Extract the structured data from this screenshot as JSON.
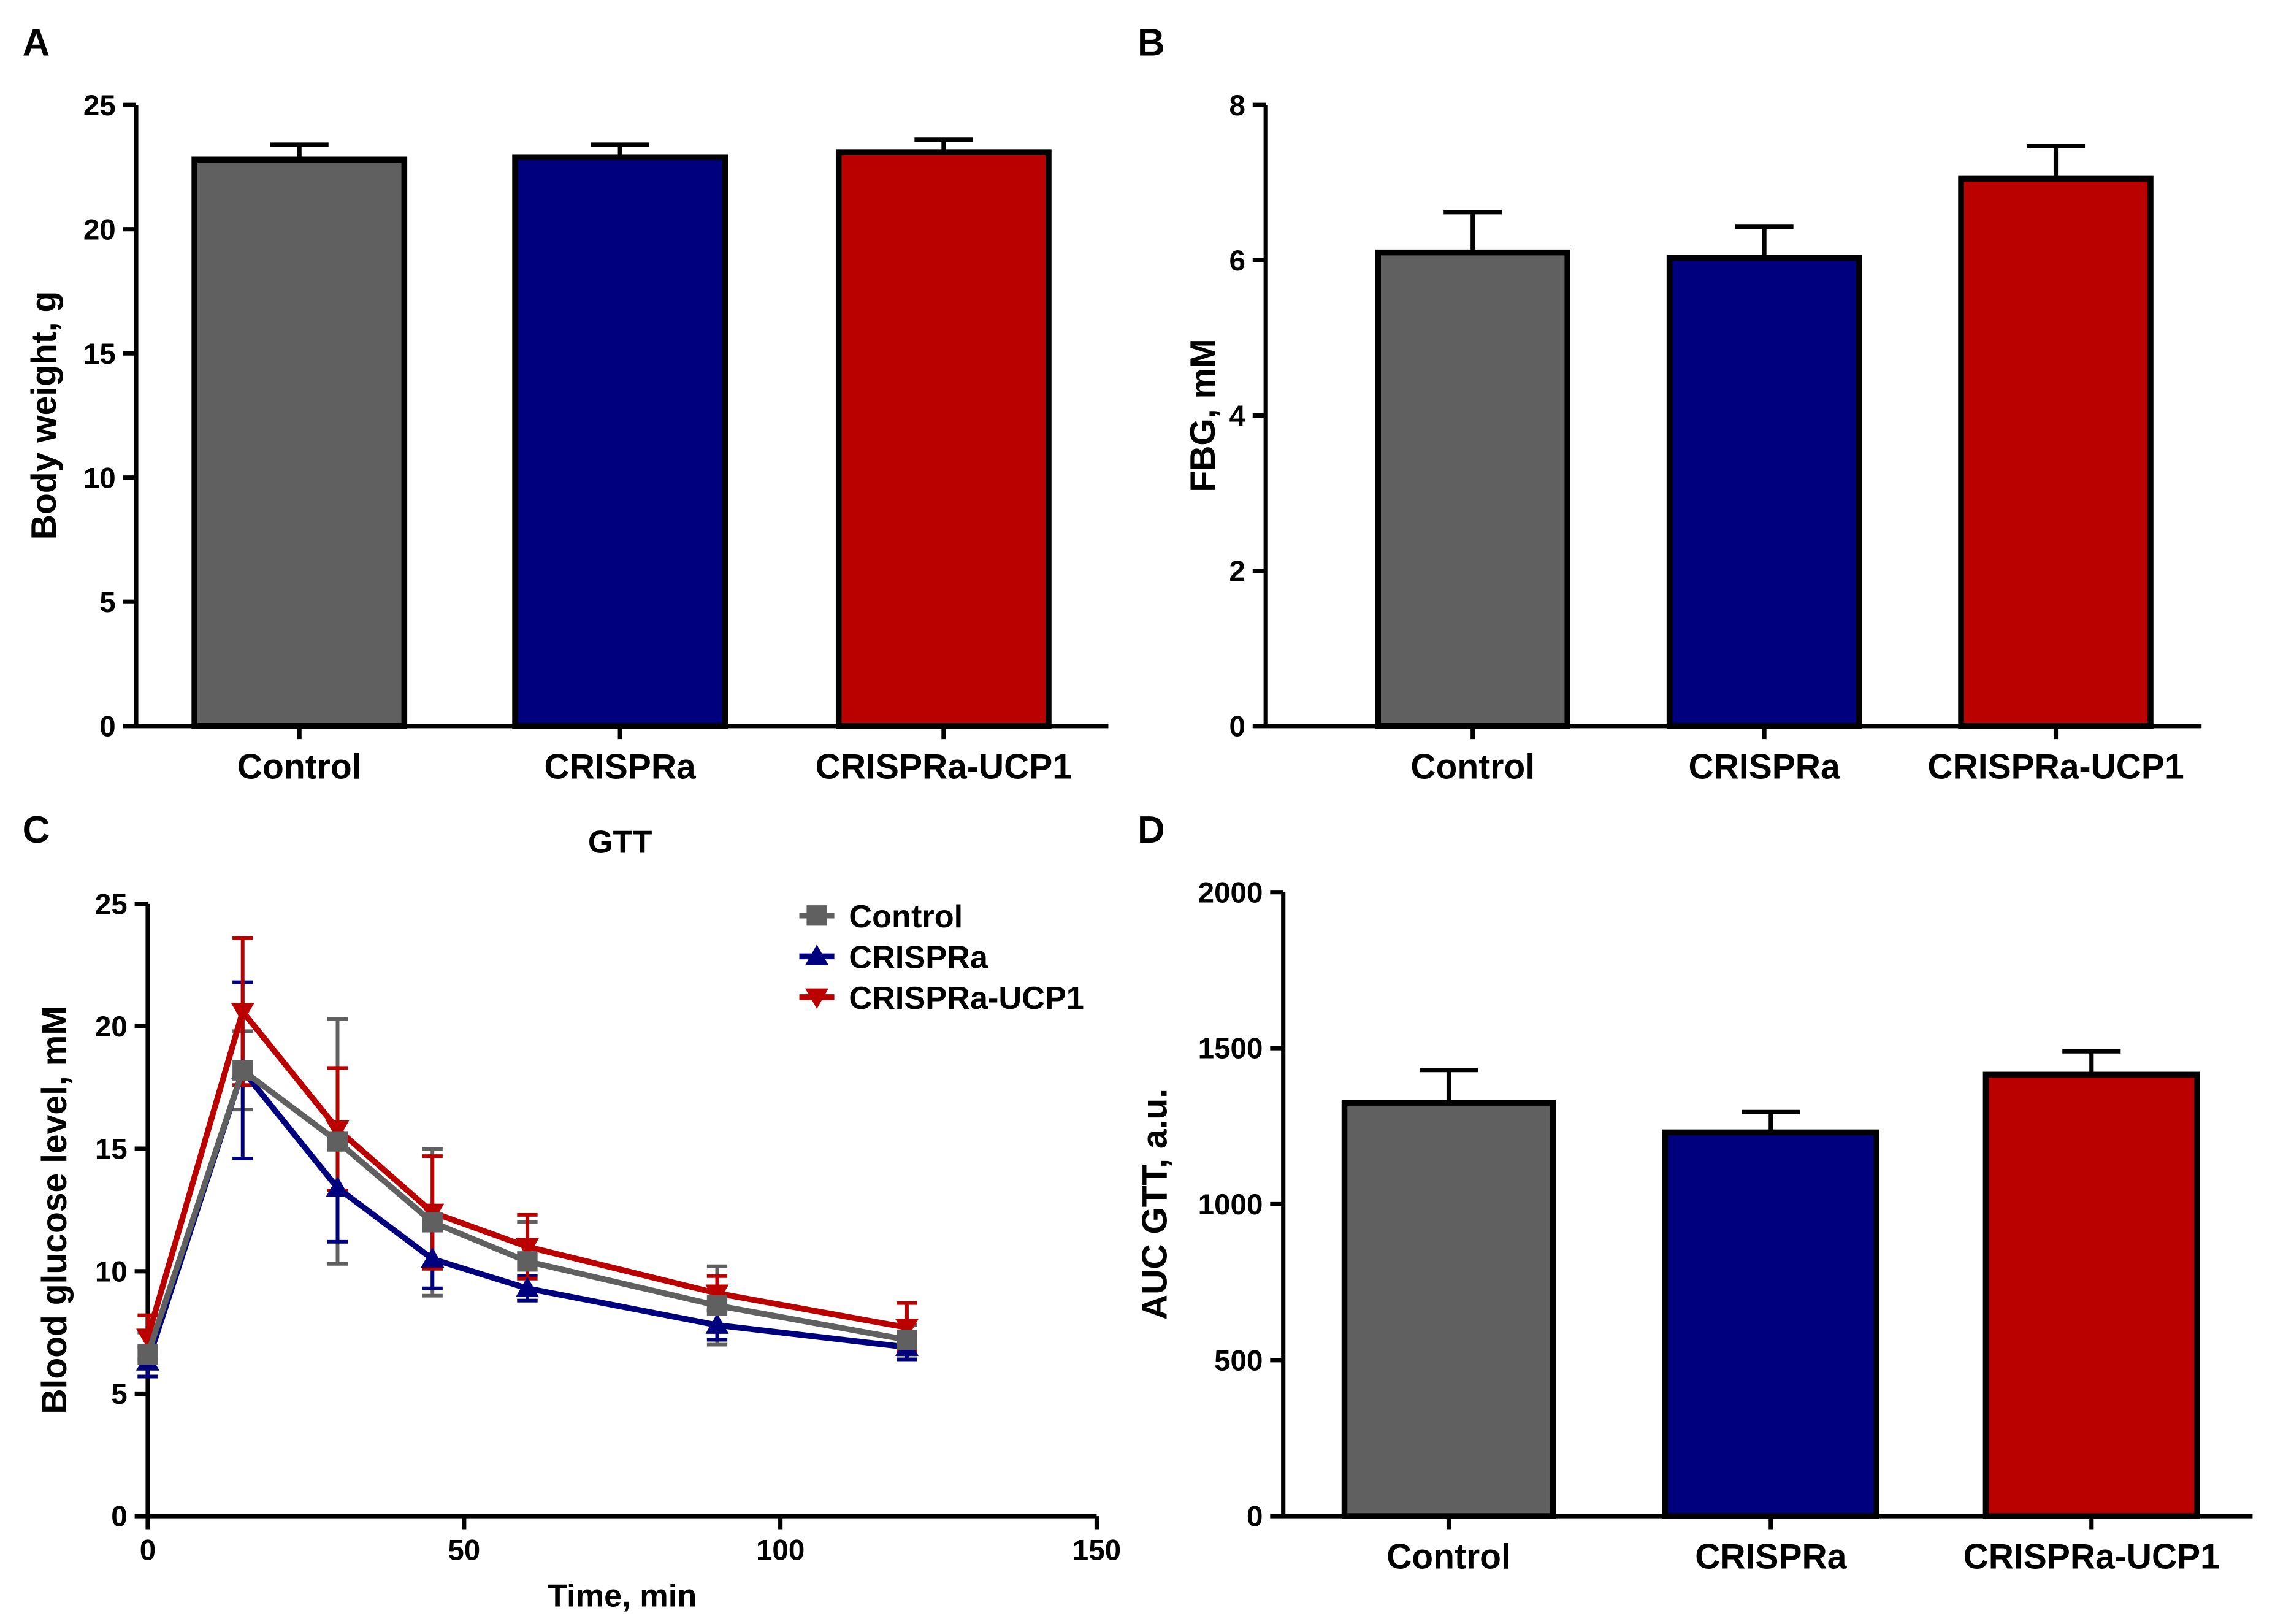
{
  "colors": {
    "control": "#606060",
    "crispra": "#00007f",
    "ucp1": "#bb0000",
    "axis": "#000000"
  },
  "chart_data": [
    {
      "panel": "A",
      "type": "bar",
      "title": "",
      "xlabel": "",
      "ylabel": "Body weight, g",
      "ylim": [
        0,
        25
      ],
      "yticks": [
        0,
        5,
        10,
        15,
        20,
        25
      ],
      "categories": [
        "Control",
        "CRISPRa",
        "CRISPRa-UCP1"
      ],
      "values": [
        22.8,
        22.9,
        23.1
      ],
      "errors": [
        0.6,
        0.5,
        0.5
      ]
    },
    {
      "panel": "B",
      "type": "bar",
      "title": "",
      "xlabel": "",
      "ylabel": "FBG, mM",
      "ylim": [
        0,
        8
      ],
      "yticks": [
        0,
        2,
        4,
        6,
        8
      ],
      "categories": [
        "Control",
        "CRISPRa",
        "CRISPRa-UCP1"
      ],
      "values": [
        6.1,
        6.03,
        7.05
      ],
      "errors": [
        0.52,
        0.4,
        0.42
      ]
    },
    {
      "panel": "C",
      "type": "line",
      "title": "GTT",
      "xlabel": "Time, min",
      "ylabel": "Blood glucose level, mM",
      "xlim": [
        0,
        150
      ],
      "ylim": [
        0,
        25
      ],
      "xticks": [
        0,
        50,
        100,
        150
      ],
      "yticks": [
        0,
        5,
        10,
        15,
        20,
        25
      ],
      "legend": "top-right",
      "x": [
        0,
        15,
        30,
        45,
        60,
        90,
        120
      ],
      "series": [
        {
          "name": "Control",
          "values": [
            6.6,
            18.2,
            15.3,
            12.0,
            10.4,
            8.6,
            7.2
          ],
          "errors": [
            0.9,
            1.6,
            5.0,
            3.0,
            1.6,
            1.6,
            0.6
          ]
        },
        {
          "name": "CRISPRa",
          "values": [
            6.3,
            18.2,
            13.4,
            10.5,
            9.3,
            7.8,
            6.9
          ],
          "errors": [
            0.6,
            3.6,
            2.2,
            1.2,
            0.5,
            0.6,
            0.5
          ]
        },
        {
          "name": "CRISPRa-UCP1",
          "values": [
            7.3,
            20.6,
            15.8,
            12.4,
            11.0,
            9.1,
            7.7
          ],
          "errors": [
            0.9,
            3.0,
            2.5,
            2.3,
            1.3,
            0.7,
            1.0
          ]
        }
      ]
    },
    {
      "panel": "D",
      "type": "bar",
      "title": "",
      "xlabel": "",
      "ylabel": "AUC  GTT, a.u.",
      "ylim": [
        0,
        2000
      ],
      "yticks": [
        0,
        500,
        1000,
        1500,
        2000
      ],
      "categories": [
        "Control",
        "CRISPRa",
        "CRISPRa-UCP1"
      ],
      "values": [
        1325,
        1230,
        1415
      ],
      "errors": [
        105,
        65,
        75
      ]
    }
  ]
}
